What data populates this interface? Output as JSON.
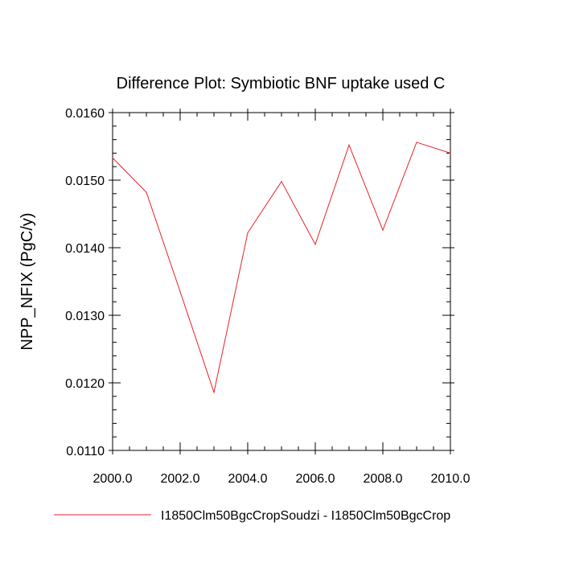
{
  "chart_data": {
    "type": "line",
    "title": "Difference Plot: Symbiotic BNF uptake used C",
    "xlabel": "",
    "ylabel": "NPP_NFIX  (PgC/y)",
    "xlim": [
      2000.0,
      2010.0
    ],
    "ylim": [
      0.011,
      0.016
    ],
    "x_ticks": [
      "2000.0",
      "2002.0",
      "2004.0",
      "2006.0",
      "2008.0",
      "2010.0"
    ],
    "y_ticks": [
      "0.0110",
      "0.0120",
      "0.0130",
      "0.0140",
      "0.0150",
      "0.0160"
    ],
    "grid": false,
    "legend_position": "bottom",
    "series": [
      {
        "name": "I1850Clm50BgcCropSoudzi - I1850Clm50BgcCrop",
        "color": "#e8202a",
        "x": [
          2000,
          2001,
          2002,
          2003,
          2004,
          2005,
          2006,
          2007,
          2008,
          2009,
          2010
        ],
        "y": [
          0.01533,
          0.01482,
          0.01335,
          0.01186,
          0.01422,
          0.01498,
          0.01405,
          0.01552,
          0.01426,
          0.01556,
          0.0154
        ]
      }
    ]
  }
}
